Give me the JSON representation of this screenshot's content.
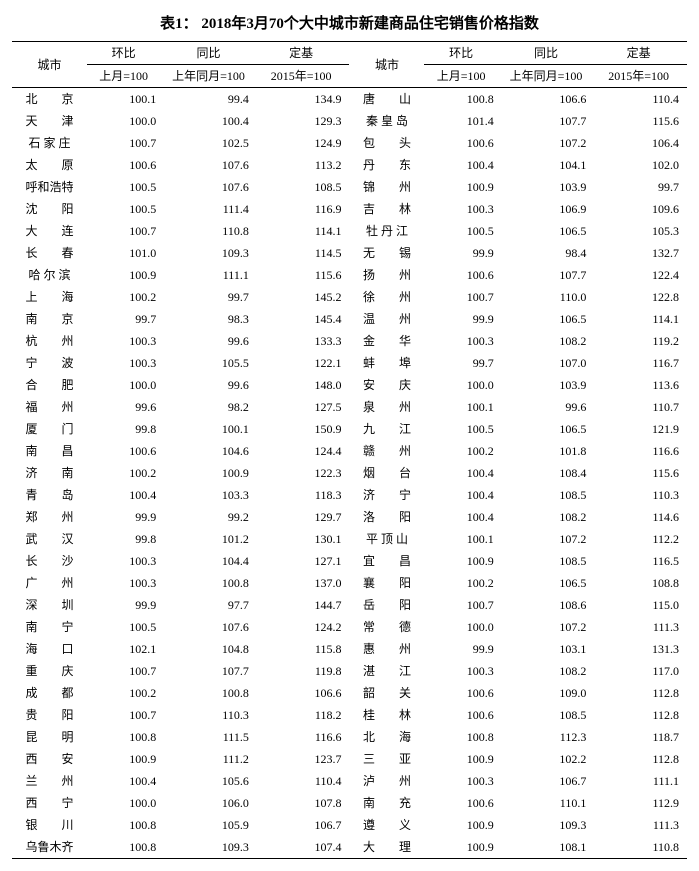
{
  "title": "表1： 2018年3月70个大中城市新建商品住宅销售价格指数",
  "headers": {
    "city": "城市",
    "hb": "环比",
    "tb": "同比",
    "dj": "定基",
    "hb_sub": "上月=100",
    "tb_sub": "上年同月=100",
    "dj_sub": "2015年=100"
  },
  "left": [
    {
      "c": "北　　京",
      "v": [
        "100.1",
        "99.4",
        "134.9"
      ]
    },
    {
      "c": "天　　津",
      "v": [
        "100.0",
        "100.4",
        "129.3"
      ]
    },
    {
      "c": "石 家 庄",
      "v": [
        "100.7",
        "102.5",
        "124.9"
      ]
    },
    {
      "c": "太　　原",
      "v": [
        "100.6",
        "107.6",
        "113.2"
      ]
    },
    {
      "c": "呼和浩特",
      "v": [
        "100.5",
        "107.6",
        "108.5"
      ]
    },
    {
      "c": "沈　　阳",
      "v": [
        "100.5",
        "111.4",
        "116.9"
      ]
    },
    {
      "c": "大　　连",
      "v": [
        "100.7",
        "110.8",
        "114.1"
      ]
    },
    {
      "c": "长　　春",
      "v": [
        "101.0",
        "109.3",
        "114.5"
      ]
    },
    {
      "c": "哈 尔 滨",
      "v": [
        "100.9",
        "111.1",
        "115.6"
      ]
    },
    {
      "c": "上　　海",
      "v": [
        "100.2",
        "99.7",
        "145.2"
      ]
    },
    {
      "c": "南　　京",
      "v": [
        "99.7",
        "98.3",
        "145.4"
      ]
    },
    {
      "c": "杭　　州",
      "v": [
        "100.3",
        "99.6",
        "133.3"
      ]
    },
    {
      "c": "宁　　波",
      "v": [
        "100.3",
        "105.5",
        "122.1"
      ]
    },
    {
      "c": "合　　肥",
      "v": [
        "100.0",
        "99.6",
        "148.0"
      ]
    },
    {
      "c": "福　　州",
      "v": [
        "99.6",
        "98.2",
        "127.5"
      ]
    },
    {
      "c": "厦　　门",
      "v": [
        "99.8",
        "100.1",
        "150.9"
      ]
    },
    {
      "c": "南　　昌",
      "v": [
        "100.6",
        "104.6",
        "124.4"
      ]
    },
    {
      "c": "济　　南",
      "v": [
        "100.2",
        "100.9",
        "122.3"
      ]
    },
    {
      "c": "青　　岛",
      "v": [
        "100.4",
        "103.3",
        "118.3"
      ]
    },
    {
      "c": "郑　　州",
      "v": [
        "99.9",
        "99.2",
        "129.7"
      ]
    },
    {
      "c": "武　　汉",
      "v": [
        "99.8",
        "101.2",
        "130.1"
      ]
    },
    {
      "c": "长　　沙",
      "v": [
        "100.3",
        "104.4",
        "127.1"
      ]
    },
    {
      "c": "广　　州",
      "v": [
        "100.3",
        "100.8",
        "137.0"
      ]
    },
    {
      "c": "深　　圳",
      "v": [
        "99.9",
        "97.7",
        "144.7"
      ]
    },
    {
      "c": "南　　宁",
      "v": [
        "100.5",
        "107.6",
        "124.2"
      ]
    },
    {
      "c": "海　　口",
      "v": [
        "102.1",
        "104.8",
        "115.8"
      ]
    },
    {
      "c": "重　　庆",
      "v": [
        "100.7",
        "107.7",
        "119.8"
      ]
    },
    {
      "c": "成　　都",
      "v": [
        "100.2",
        "100.8",
        "106.6"
      ]
    },
    {
      "c": "贵　　阳",
      "v": [
        "100.7",
        "110.3",
        "118.2"
      ]
    },
    {
      "c": "昆　　明",
      "v": [
        "100.8",
        "111.5",
        "116.6"
      ]
    },
    {
      "c": "西　　安",
      "v": [
        "100.9",
        "111.2",
        "123.7"
      ]
    },
    {
      "c": "兰　　州",
      "v": [
        "100.4",
        "105.6",
        "110.4"
      ]
    },
    {
      "c": "西　　宁",
      "v": [
        "100.0",
        "106.0",
        "107.8"
      ]
    },
    {
      "c": "银　　川",
      "v": [
        "100.8",
        "105.9",
        "106.7"
      ]
    },
    {
      "c": "乌鲁木齐",
      "v": [
        "100.8",
        "109.3",
        "107.4"
      ]
    }
  ],
  "right": [
    {
      "c": "唐　　山",
      "v": [
        "100.8",
        "106.6",
        "110.4"
      ]
    },
    {
      "c": "秦 皇 岛",
      "v": [
        "101.4",
        "107.7",
        "115.6"
      ]
    },
    {
      "c": "包　　头",
      "v": [
        "100.6",
        "107.2",
        "106.4"
      ]
    },
    {
      "c": "丹　　东",
      "v": [
        "100.4",
        "104.1",
        "102.0"
      ]
    },
    {
      "c": "锦　　州",
      "v": [
        "100.9",
        "103.9",
        "99.7"
      ]
    },
    {
      "c": "吉　　林",
      "v": [
        "100.3",
        "106.9",
        "109.6"
      ]
    },
    {
      "c": "牡 丹 江",
      "v": [
        "100.5",
        "106.5",
        "105.3"
      ]
    },
    {
      "c": "无　　锡",
      "v": [
        "99.9",
        "98.4",
        "132.7"
      ]
    },
    {
      "c": "扬　　州",
      "v": [
        "100.6",
        "107.7",
        "122.4"
      ]
    },
    {
      "c": "徐　　州",
      "v": [
        "100.7",
        "110.0",
        "122.8"
      ]
    },
    {
      "c": "温　　州",
      "v": [
        "99.9",
        "106.5",
        "114.1"
      ]
    },
    {
      "c": "金　　华",
      "v": [
        "100.3",
        "108.2",
        "119.2"
      ]
    },
    {
      "c": "蚌　　埠",
      "v": [
        "99.7",
        "107.0",
        "116.7"
      ]
    },
    {
      "c": "安　　庆",
      "v": [
        "100.0",
        "103.9",
        "113.6"
      ]
    },
    {
      "c": "泉　　州",
      "v": [
        "100.1",
        "99.6",
        "110.7"
      ]
    },
    {
      "c": "九　　江",
      "v": [
        "100.5",
        "106.5",
        "121.9"
      ]
    },
    {
      "c": "赣　　州",
      "v": [
        "100.2",
        "101.8",
        "116.6"
      ]
    },
    {
      "c": "烟　　台",
      "v": [
        "100.4",
        "108.4",
        "115.6"
      ]
    },
    {
      "c": "济　　宁",
      "v": [
        "100.4",
        "108.5",
        "110.3"
      ]
    },
    {
      "c": "洛　　阳",
      "v": [
        "100.4",
        "108.2",
        "114.6"
      ]
    },
    {
      "c": "平 顶 山",
      "v": [
        "100.1",
        "107.2",
        "112.2"
      ]
    },
    {
      "c": "宜　　昌",
      "v": [
        "100.9",
        "108.5",
        "116.5"
      ]
    },
    {
      "c": "襄　　阳",
      "v": [
        "100.2",
        "106.5",
        "108.8"
      ]
    },
    {
      "c": "岳　　阳",
      "v": [
        "100.7",
        "108.6",
        "115.0"
      ]
    },
    {
      "c": "常　　德",
      "v": [
        "100.0",
        "107.2",
        "111.3"
      ]
    },
    {
      "c": "惠　　州",
      "v": [
        "99.9",
        "103.1",
        "131.3"
      ]
    },
    {
      "c": "湛　　江",
      "v": [
        "100.3",
        "108.2",
        "117.0"
      ]
    },
    {
      "c": "韶　　关",
      "v": [
        "100.6",
        "109.0",
        "112.8"
      ]
    },
    {
      "c": "桂　　林",
      "v": [
        "100.6",
        "108.5",
        "112.8"
      ]
    },
    {
      "c": "北　　海",
      "v": [
        "100.8",
        "112.3",
        "118.7"
      ]
    },
    {
      "c": "三　　亚",
      "v": [
        "100.9",
        "102.2",
        "112.8"
      ]
    },
    {
      "c": "泸　　州",
      "v": [
        "100.3",
        "106.7",
        "111.1"
      ]
    },
    {
      "c": "南　　充",
      "v": [
        "100.6",
        "110.1",
        "112.9"
      ]
    },
    {
      "c": "遵　　义",
      "v": [
        "100.9",
        "109.3",
        "111.3"
      ]
    },
    {
      "c": "大　　理",
      "v": [
        "100.9",
        "108.1",
        "110.8"
      ]
    }
  ]
}
